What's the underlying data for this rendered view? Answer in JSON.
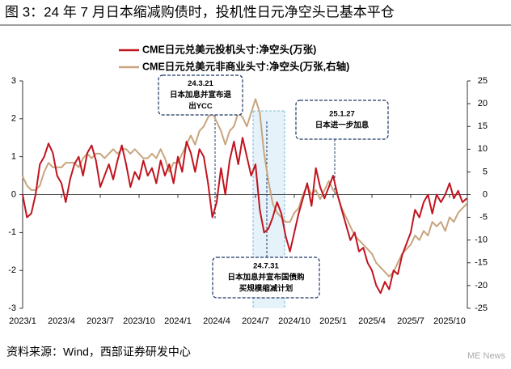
{
  "chart_data": {
    "type": "line",
    "title": "图 3：24 年 7 月日本缩减购债时，投机性日元净空头已基本平仓",
    "categories": [
      "2023/1",
      null,
      null,
      null,
      null,
      null,
      null,
      null,
      null,
      "2023/4",
      null,
      null,
      null,
      null,
      null,
      null,
      null,
      null,
      "2023/7",
      null,
      null,
      null,
      null,
      null,
      null,
      null,
      null,
      "2023/10",
      null,
      null,
      null,
      null,
      null,
      null,
      null,
      null,
      "2024/1",
      null,
      null,
      null,
      null,
      null,
      null,
      null,
      null,
      "2024/4",
      null,
      null,
      null,
      null,
      null,
      null,
      null,
      null,
      "2024/7",
      null,
      null,
      null,
      null,
      null,
      null,
      null,
      null,
      "2024/10",
      null,
      null,
      null,
      null,
      null,
      null,
      null,
      null,
      "2025/1",
      null,
      null,
      null,
      null,
      null,
      null,
      null,
      null,
      "2025/4",
      null,
      null,
      null,
      null,
      null,
      null,
      null,
      null,
      "2025/7",
      null,
      null,
      null,
      null,
      null,
      null,
      null,
      null,
      "2025/10",
      null,
      null,
      null,
      null
    ],
    "series": [
      {
        "name": "CME日元兑美元投机头寸:净空头(万张)",
        "color": "#c0141f",
        "axis": "y",
        "values": [
          0,
          -0.6,
          -0.5,
          0,
          0.8,
          1.0,
          1.35,
          1.1,
          0.5,
          0.3,
          -0.2,
          0.4,
          0.8,
          1.0,
          0.5,
          1.1,
          1.3,
          0.9,
          0.2,
          0.5,
          0.8,
          0.4,
          0.9,
          1.3,
          0.8,
          0.2,
          0.6,
          0.4,
          0.9,
          0.5,
          0.7,
          0.3,
          0.9,
          0.5,
          0.8,
          0.3,
          1.0,
          0.6,
          1.4,
          1.1,
          0.6,
          1.2,
          1.0,
          0.3,
          -0.6,
          -0.2,
          0.7,
          0.0,
          0.9,
          1.4,
          0.8,
          1.5,
          1.0,
          0.5,
          0.8,
          -0.4,
          -1.0,
          -0.9,
          -0.6,
          -0.2,
          -0.5,
          -1.1,
          -1.5,
          -1.0,
          -0.5,
          -0.1,
          0.3,
          -0.3,
          0.7,
          0.2,
          -0.1,
          0.2,
          0.5,
          0.0,
          -0.4,
          -0.8,
          -1.2,
          -1.0,
          -1.5,
          -1.4,
          -1.8,
          -2.0,
          -2.4,
          -2.6,
          -2.3,
          -2.5,
          -2.0,
          -2.1,
          -1.6,
          -1.3,
          -1.0,
          -0.4,
          -0.6,
          -0.2,
          0.0,
          -0.5,
          0.0,
          -0.2,
          0.0,
          0.3,
          -0.1,
          0.1,
          -0.2,
          -0.1
        ]
      },
      {
        "name": "CME日元兑美元非商业头寸:净空头(万张,右轴)",
        "color": "#c8a57e",
        "axis": "y2",
        "values": [
          4,
          2,
          1,
          1,
          2,
          5,
          7,
          6,
          6,
          6,
          7,
          7,
          7,
          6,
          8,
          9,
          8,
          9,
          9,
          8,
          9,
          10,
          9,
          10,
          10,
          9,
          10,
          9,
          8,
          8,
          9,
          8,
          10,
          8,
          5,
          7,
          7,
          9,
          11,
          13,
          11,
          14,
          15,
          17,
          18,
          16,
          14,
          11,
          14,
          15,
          18,
          17,
          15,
          18,
          21,
          18,
          9,
          3,
          -2,
          -4,
          -5,
          -6,
          -6,
          -4,
          -3,
          0,
          2,
          0,
          1,
          -1,
          1,
          3,
          1,
          0,
          -3,
          -5,
          -7,
          -9,
          -10,
          -11,
          -12,
          -13,
          -15,
          -16,
          -17,
          -18,
          -17,
          -15,
          -13,
          -12,
          -11,
          -9,
          -10,
          -8,
          -9,
          -6,
          -7,
          -6,
          -8,
          -5,
          -6,
          -4,
          -3,
          -2
        ]
      }
    ],
    "ylim": [
      -3,
      3
    ],
    "yticks": [
      3,
      2,
      1,
      0,
      -1,
      -2,
      -3
    ],
    "y2lim": [
      -25,
      25
    ],
    "y2ticks": [
      25,
      20,
      15,
      10,
      5,
      0,
      -5,
      -10,
      -15,
      -20,
      -25
    ],
    "legend": "top",
    "annotations": [
      {
        "lines": [
          "24.3.21",
          "日本加息并宣布退",
          "出YCC"
        ]
      },
      {
        "lines": [
          "25.1.27",
          "日本进一步加息"
        ]
      },
      {
        "lines": [
          "24.7.31",
          "日本加息并宣布国债购",
          "买规模缩减计划"
        ]
      }
    ],
    "source": "资料来源：Wind，西部证券研发中心",
    "watermark": "ME News"
  }
}
